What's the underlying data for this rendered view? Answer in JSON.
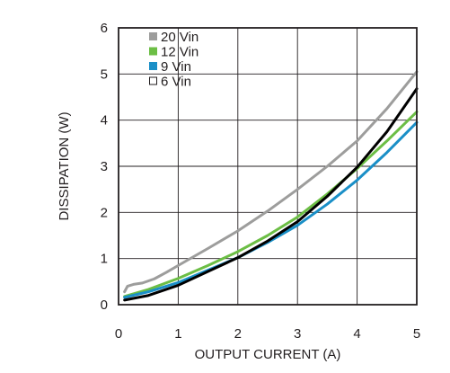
{
  "chart_data": {
    "type": "line",
    "xlabel": "OUTPUT CURRENT (A)",
    "ylabel": "DISSIPATION (W)",
    "xlim": [
      0,
      5
    ],
    "ylim": [
      0,
      6
    ],
    "x_ticks": [
      "0",
      "1",
      "2",
      "3",
      "4",
      "5"
    ],
    "y_ticks": [
      "0",
      "1",
      "2",
      "3",
      "4",
      "5",
      "6"
    ],
    "grid": true,
    "legend_position": "top-left",
    "series": [
      {
        "name": "20 Vin",
        "color": "#9d9d9c",
        "legend_marker": "filled-square",
        "points": [
          [
            0.1,
            0.28
          ],
          [
            0.15,
            0.4
          ],
          [
            0.25,
            0.44
          ],
          [
            0.4,
            0.47
          ],
          [
            0.6,
            0.56
          ],
          [
            0.8,
            0.7
          ],
          [
            1.0,
            0.85
          ],
          [
            1.5,
            1.22
          ],
          [
            2.0,
            1.6
          ],
          [
            2.5,
            2.03
          ],
          [
            3.0,
            2.5
          ],
          [
            3.5,
            3.0
          ],
          [
            4.0,
            3.55
          ],
          [
            4.5,
            4.25
          ],
          [
            5.0,
            5.05
          ]
        ]
      },
      {
        "name": "12 Vin",
        "color": "#6cbe45",
        "legend_marker": "filled-square",
        "points": [
          [
            0.1,
            0.18
          ],
          [
            0.5,
            0.33
          ],
          [
            1.0,
            0.57
          ],
          [
            1.5,
            0.85
          ],
          [
            2.0,
            1.15
          ],
          [
            2.5,
            1.5
          ],
          [
            3.0,
            1.9
          ],
          [
            3.5,
            2.4
          ],
          [
            4.0,
            2.95
          ],
          [
            4.5,
            3.55
          ],
          [
            5.0,
            4.18
          ]
        ]
      },
      {
        "name": "9 Vin",
        "color": "#1a8fc7",
        "legend_marker": "filled-square",
        "points": [
          [
            0.1,
            0.16
          ],
          [
            0.5,
            0.28
          ],
          [
            1.0,
            0.48
          ],
          [
            1.5,
            0.75
          ],
          [
            2.0,
            1.02
          ],
          [
            2.5,
            1.35
          ],
          [
            3.0,
            1.72
          ],
          [
            3.5,
            2.18
          ],
          [
            4.0,
            2.7
          ],
          [
            4.5,
            3.3
          ],
          [
            5.0,
            3.95
          ]
        ]
      },
      {
        "name": "6 Vin",
        "color": "#000000",
        "legend_marker": "open-square",
        "points": [
          [
            0.1,
            0.1
          ],
          [
            0.5,
            0.2
          ],
          [
            1.0,
            0.42
          ],
          [
            1.5,
            0.72
          ],
          [
            2.0,
            1.02
          ],
          [
            2.5,
            1.38
          ],
          [
            3.0,
            1.8
          ],
          [
            3.5,
            2.35
          ],
          [
            4.0,
            2.98
          ],
          [
            4.5,
            3.75
          ],
          [
            5.0,
            4.68
          ]
        ]
      }
    ]
  }
}
